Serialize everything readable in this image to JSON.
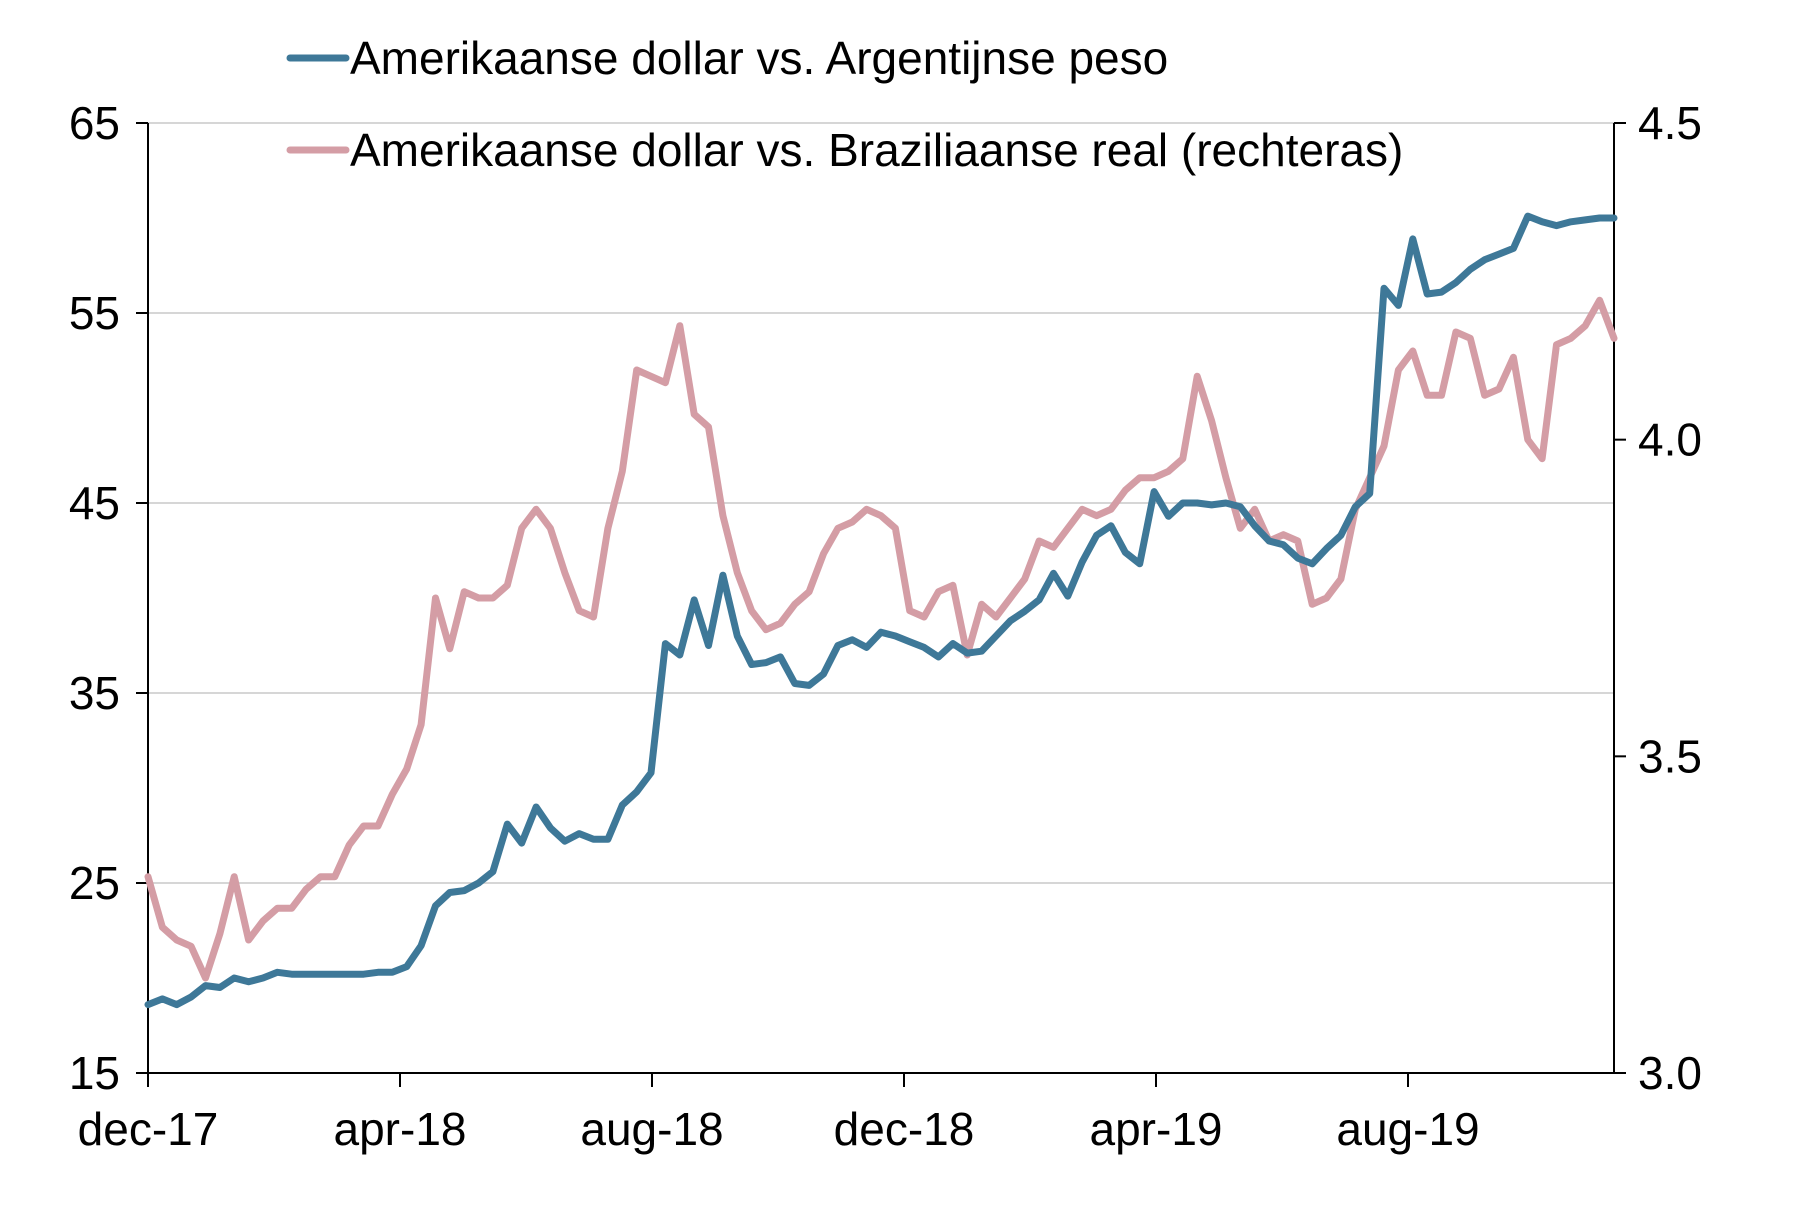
{
  "chart_data": {
    "type": "line",
    "title": "",
    "xlabel": "",
    "ylabel": "",
    "x_tick_labels": [
      "dec-17",
      "apr-18",
      "aug-18",
      "dec-18",
      "apr-19",
      "aug-19"
    ],
    "left_axis": {
      "ylim": [
        15,
        65
      ],
      "ticks": [
        15,
        25,
        35,
        45,
        55,
        65
      ]
    },
    "right_axis": {
      "ylim": [
        3.0,
        4.5
      ],
      "ticks": [
        "3.0",
        "3.5",
        "4.0",
        "4.5"
      ]
    },
    "grid": "horizontal",
    "legend_position": "top",
    "series": [
      {
        "name": "Amerikaanse dollar vs. Argentijnse peso",
        "axis": "left",
        "color": "#3e7898",
        "values": [
          18.6,
          18.9,
          18.6,
          19.0,
          19.6,
          19.5,
          20.0,
          19.8,
          20.0,
          20.3,
          20.2,
          20.2,
          20.2,
          20.2,
          20.2,
          20.2,
          20.3,
          20.3,
          20.6,
          21.7,
          23.8,
          24.5,
          24.6,
          25.0,
          25.6,
          28.1,
          27.1,
          29.0,
          27.9,
          27.2,
          27.6,
          27.3,
          27.3,
          29.1,
          29.8,
          30.8,
          37.6,
          37.0,
          39.9,
          37.5,
          41.2,
          38.0,
          36.5,
          36.6,
          36.9,
          35.5,
          35.4,
          36.0,
          37.5,
          37.8,
          37.4,
          38.2,
          38.0,
          37.7,
          37.4,
          36.9,
          37.6,
          37.1,
          37.2,
          38.0,
          38.8,
          39.3,
          39.9,
          41.3,
          40.1,
          41.9,
          43.3,
          43.8,
          42.4,
          41.8,
          45.6,
          44.3,
          45.0,
          45.0,
          44.9,
          45.0,
          44.8,
          43.8,
          43.0,
          42.8,
          42.1,
          41.8,
          42.6,
          43.3,
          44.8,
          45.5,
          56.3,
          55.4,
          58.9,
          56.0,
          56.1,
          56.6,
          57.3,
          57.8,
          58.1,
          58.4,
          60.1,
          59.8,
          59.6,
          59.8,
          59.9,
          60.0,
          60.0
        ]
      },
      {
        "name": "Amerikaanse dollar vs. Braziliaanse real (rechteras)",
        "axis": "right",
        "color": "#d49da5",
        "values": [
          3.31,
          3.23,
          3.21,
          3.2,
          3.15,
          3.22,
          3.31,
          3.21,
          3.24,
          3.26,
          3.26,
          3.29,
          3.31,
          3.31,
          3.36,
          3.39,
          3.39,
          3.44,
          3.48,
          3.55,
          3.75,
          3.67,
          3.76,
          3.75,
          3.75,
          3.77,
          3.86,
          3.89,
          3.86,
          3.79,
          3.73,
          3.72,
          3.86,
          3.95,
          4.11,
          4.1,
          4.09,
          4.18,
          4.04,
          4.02,
          3.88,
          3.79,
          3.73,
          3.7,
          3.71,
          3.74,
          3.76,
          3.82,
          3.86,
          3.87,
          3.89,
          3.88,
          3.86,
          3.73,
          3.72,
          3.76,
          3.77,
          3.66,
          3.74,
          3.72,
          3.75,
          3.78,
          3.84,
          3.83,
          3.86,
          3.89,
          3.88,
          3.89,
          3.92,
          3.94,
          3.94,
          3.95,
          3.97,
          4.1,
          4.03,
          3.94,
          3.86,
          3.89,
          3.84,
          3.85,
          3.84,
          3.74,
          3.75,
          3.78,
          3.89,
          3.94,
          3.99,
          4.11,
          4.14,
          4.07,
          4.07,
          4.17,
          4.16,
          4.07,
          4.08,
          4.13,
          4.0,
          3.97,
          4.15,
          4.16,
          4.18,
          4.22,
          4.16
        ]
      }
    ]
  }
}
